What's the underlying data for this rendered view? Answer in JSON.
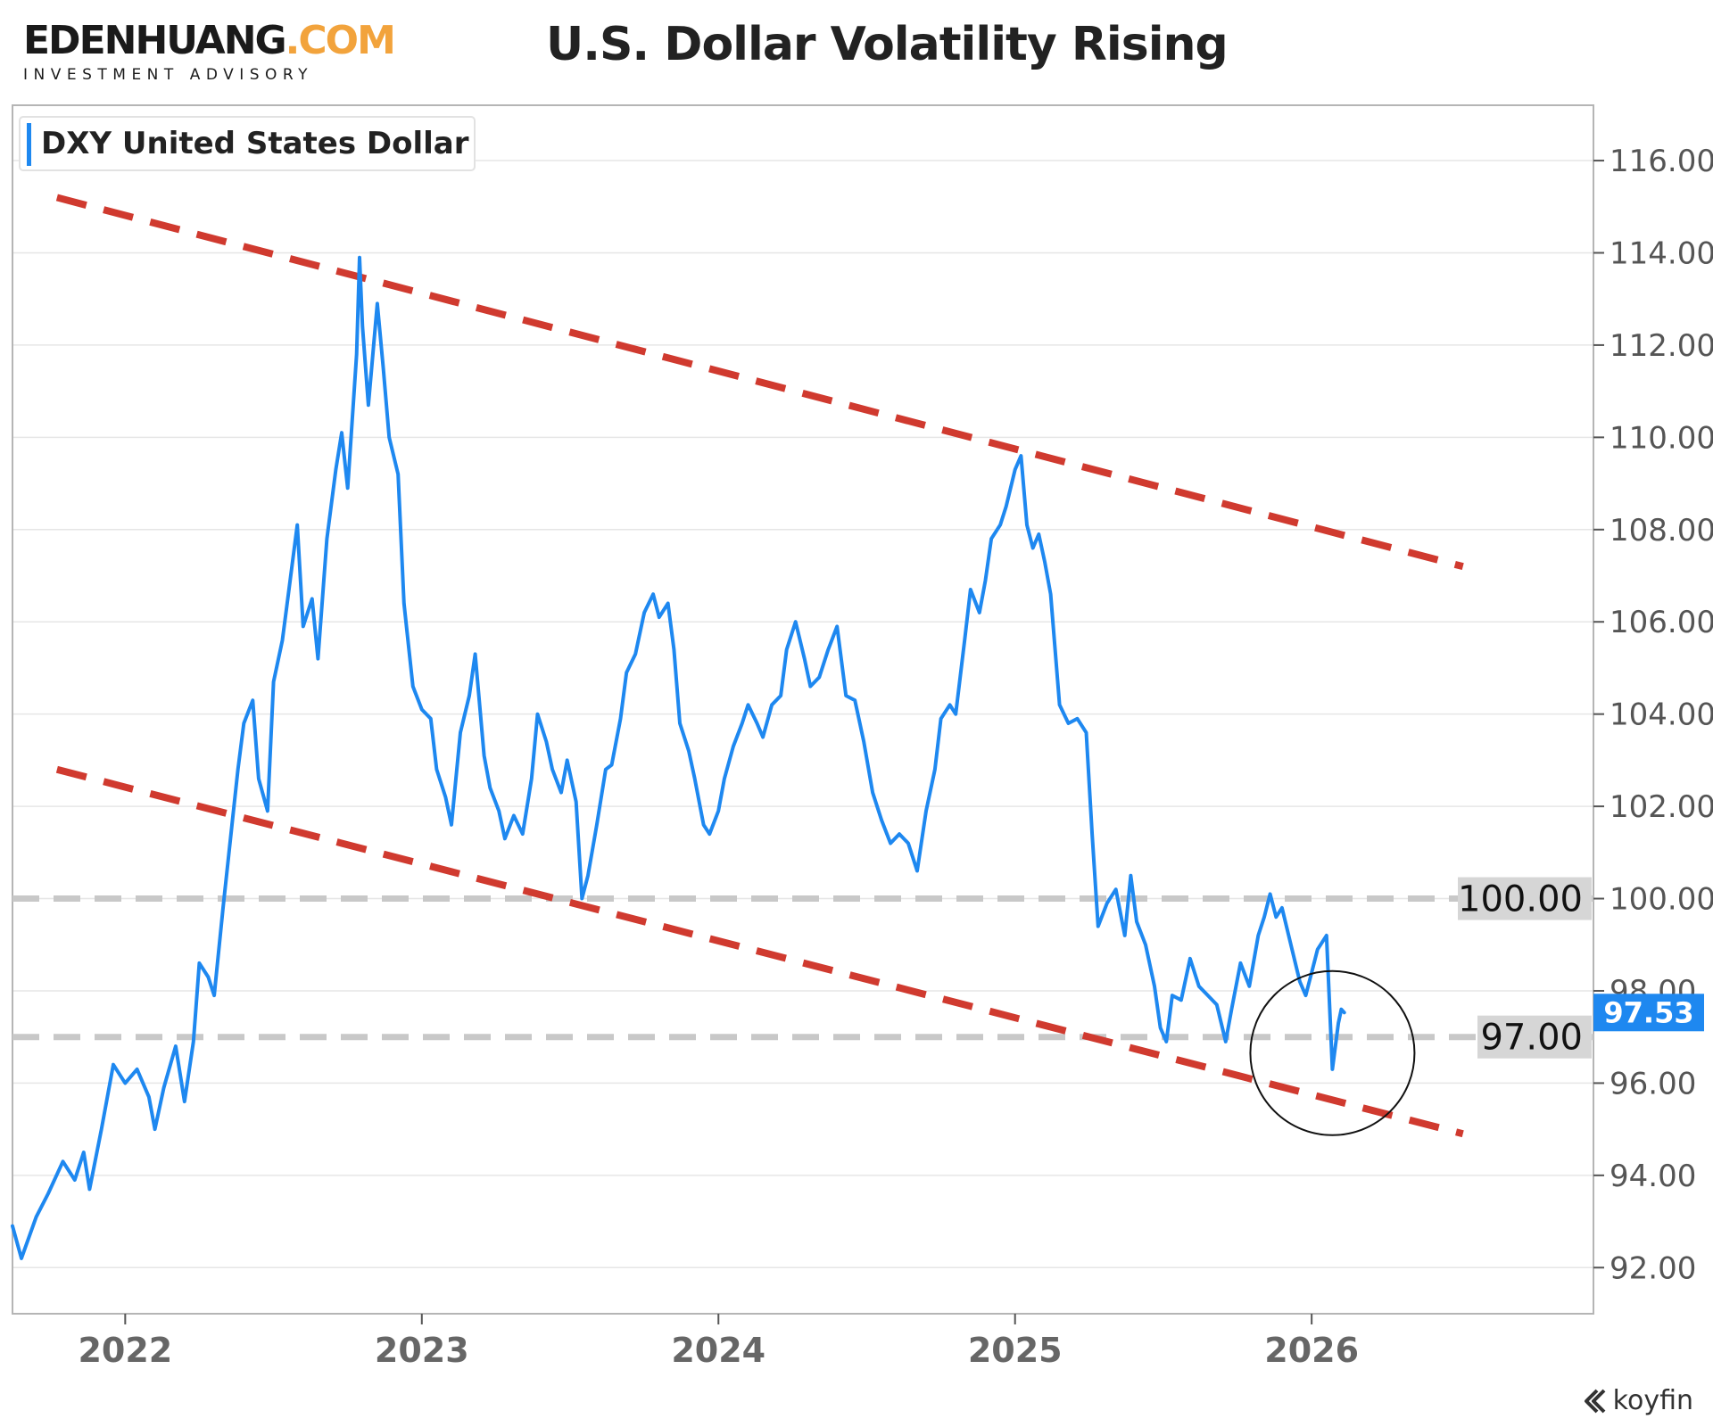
{
  "brand": {
    "name_main": "EDENHUANG",
    "name_accent": ".COM",
    "tagline": "INVESTMENT ADVISORY"
  },
  "watermark": "koyfin",
  "colors": {
    "line": "#1e88f0",
    "trend": "#d03a2f",
    "level": "#c8c8c8",
    "grid": "#e6e6e6"
  },
  "chart_data": {
    "type": "line",
    "title": "U.S. Dollar Volatility Rising",
    "legend": "DXY United States Dollar",
    "legend_position": "top-left",
    "x_range": [
      2021.62,
      2026.95
    ],
    "ylim": [
      91,
      117.2
    ],
    "x_ticks": [
      {
        "value": 2022,
        "label": "2022"
      },
      {
        "value": 2023,
        "label": "2023"
      },
      {
        "value": 2024,
        "label": "2024"
      },
      {
        "value": 2025,
        "label": "2025"
      },
      {
        "value": 2026,
        "label": "2026"
      }
    ],
    "y_ticks": [
      {
        "value": 92,
        "label": "92.00"
      },
      {
        "value": 94,
        "label": "94.00"
      },
      {
        "value": 96,
        "label": "96.00"
      },
      {
        "value": 98,
        "label": "98.00"
      },
      {
        "value": 100,
        "label": "100.00"
      },
      {
        "value": 102,
        "label": "102.00"
      },
      {
        "value": 104,
        "label": "104.00"
      },
      {
        "value": 106,
        "label": "106.00"
      },
      {
        "value": 108,
        "label": "108.00"
      },
      {
        "value": 110,
        "label": "110.00"
      },
      {
        "value": 112,
        "label": "112.00"
      },
      {
        "value": 114,
        "label": "114.00"
      },
      {
        "value": 116,
        "label": "116.00"
      }
    ],
    "series": [
      {
        "name": "DXY United States Dollar",
        "last_value_label": "97.53",
        "points": [
          [
            2021.62,
            92.9
          ],
          [
            2021.65,
            92.2
          ],
          [
            2021.7,
            93.1
          ],
          [
            2021.74,
            93.6
          ],
          [
            2021.79,
            94.3
          ],
          [
            2021.83,
            93.9
          ],
          [
            2021.86,
            94.5
          ],
          [
            2021.88,
            93.7
          ],
          [
            2021.92,
            95.0
          ],
          [
            2021.96,
            96.4
          ],
          [
            2022.0,
            96.0
          ],
          [
            2022.04,
            96.3
          ],
          [
            2022.08,
            95.7
          ],
          [
            2022.1,
            95.0
          ],
          [
            2022.13,
            95.9
          ],
          [
            2022.17,
            96.8
          ],
          [
            2022.2,
            95.6
          ],
          [
            2022.23,
            96.9
          ],
          [
            2022.25,
            98.6
          ],
          [
            2022.28,
            98.3
          ],
          [
            2022.3,
            97.9
          ],
          [
            2022.33,
            99.8
          ],
          [
            2022.36,
            101.6
          ],
          [
            2022.38,
            102.8
          ],
          [
            2022.4,
            103.8
          ],
          [
            2022.43,
            104.3
          ],
          [
            2022.45,
            102.6
          ],
          [
            2022.48,
            101.9
          ],
          [
            2022.5,
            104.7
          ],
          [
            2022.53,
            105.6
          ],
          [
            2022.55,
            106.6
          ],
          [
            2022.58,
            108.1
          ],
          [
            2022.6,
            105.9
          ],
          [
            2022.63,
            106.5
          ],
          [
            2022.65,
            105.2
          ],
          [
            2022.68,
            107.8
          ],
          [
            2022.71,
            109.3
          ],
          [
            2022.73,
            110.1
          ],
          [
            2022.75,
            108.9
          ],
          [
            2022.78,
            111.8
          ],
          [
            2022.79,
            113.9
          ],
          [
            2022.8,
            112.4
          ],
          [
            2022.82,
            110.7
          ],
          [
            2022.85,
            112.9
          ],
          [
            2022.87,
            111.5
          ],
          [
            2022.89,
            110.0
          ],
          [
            2022.92,
            109.2
          ],
          [
            2022.94,
            106.4
          ],
          [
            2022.97,
            104.6
          ],
          [
            2023.0,
            104.1
          ],
          [
            2023.03,
            103.9
          ],
          [
            2023.05,
            102.8
          ],
          [
            2023.08,
            102.2
          ],
          [
            2023.1,
            101.6
          ],
          [
            2023.13,
            103.6
          ],
          [
            2023.16,
            104.4
          ],
          [
            2023.18,
            105.3
          ],
          [
            2023.21,
            103.1
          ],
          [
            2023.23,
            102.4
          ],
          [
            2023.26,
            101.9
          ],
          [
            2023.28,
            101.3
          ],
          [
            2023.31,
            101.8
          ],
          [
            2023.34,
            101.4
          ],
          [
            2023.37,
            102.6
          ],
          [
            2023.39,
            104.0
          ],
          [
            2023.42,
            103.4
          ],
          [
            2023.44,
            102.8
          ],
          [
            2023.47,
            102.3
          ],
          [
            2023.49,
            103.0
          ],
          [
            2023.52,
            102.1
          ],
          [
            2023.54,
            100.0
          ],
          [
            2023.56,
            100.5
          ],
          [
            2023.59,
            101.6
          ],
          [
            2023.62,
            102.8
          ],
          [
            2023.64,
            102.9
          ],
          [
            2023.67,
            103.9
          ],
          [
            2023.69,
            104.9
          ],
          [
            2023.72,
            105.3
          ],
          [
            2023.75,
            106.2
          ],
          [
            2023.78,
            106.6
          ],
          [
            2023.8,
            106.1
          ],
          [
            2023.83,
            106.4
          ],
          [
            2023.85,
            105.4
          ],
          [
            2023.87,
            103.8
          ],
          [
            2023.9,
            103.2
          ],
          [
            2023.92,
            102.6
          ],
          [
            2023.95,
            101.6
          ],
          [
            2023.97,
            101.4
          ],
          [
            2024.0,
            101.9
          ],
          [
            2024.02,
            102.6
          ],
          [
            2024.05,
            103.3
          ],
          [
            2024.08,
            103.8
          ],
          [
            2024.1,
            104.2
          ],
          [
            2024.13,
            103.8
          ],
          [
            2024.15,
            103.5
          ],
          [
            2024.18,
            104.2
          ],
          [
            2024.21,
            104.4
          ],
          [
            2024.23,
            105.4
          ],
          [
            2024.26,
            106.0
          ],
          [
            2024.29,
            105.2
          ],
          [
            2024.31,
            104.6
          ],
          [
            2024.34,
            104.8
          ],
          [
            2024.37,
            105.4
          ],
          [
            2024.4,
            105.9
          ],
          [
            2024.43,
            104.4
          ],
          [
            2024.46,
            104.3
          ],
          [
            2024.49,
            103.4
          ],
          [
            2024.52,
            102.3
          ],
          [
            2024.55,
            101.7
          ],
          [
            2024.58,
            101.2
          ],
          [
            2024.61,
            101.4
          ],
          [
            2024.64,
            101.2
          ],
          [
            2024.67,
            100.6
          ],
          [
            2024.7,
            101.9
          ],
          [
            2024.73,
            102.8
          ],
          [
            2024.75,
            103.9
          ],
          [
            2024.78,
            104.2
          ],
          [
            2024.8,
            104.0
          ],
          [
            2024.83,
            105.6
          ],
          [
            2024.85,
            106.7
          ],
          [
            2024.88,
            106.2
          ],
          [
            2024.9,
            106.9
          ],
          [
            2024.92,
            107.8
          ],
          [
            2024.95,
            108.1
          ],
          [
            2024.97,
            108.5
          ],
          [
            2025.0,
            109.3
          ],
          [
            2025.02,
            109.6
          ],
          [
            2025.04,
            108.1
          ],
          [
            2025.06,
            107.6
          ],
          [
            2025.08,
            107.9
          ],
          [
            2025.1,
            107.3
          ],
          [
            2025.12,
            106.6
          ],
          [
            2025.15,
            104.2
          ],
          [
            2025.18,
            103.8
          ],
          [
            2025.21,
            103.9
          ],
          [
            2025.24,
            103.6
          ],
          [
            2025.26,
            101.4
          ],
          [
            2025.28,
            99.4
          ],
          [
            2025.31,
            99.9
          ],
          [
            2025.34,
            100.2
          ],
          [
            2025.37,
            99.2
          ],
          [
            2025.39,
            100.5
          ],
          [
            2025.41,
            99.5
          ],
          [
            2025.44,
            99.0
          ],
          [
            2025.47,
            98.1
          ],
          [
            2025.49,
            97.2
          ],
          [
            2025.51,
            96.9
          ],
          [
            2025.53,
            97.9
          ],
          [
            2025.56,
            97.8
          ],
          [
            2025.59,
            98.7
          ],
          [
            2025.62,
            98.1
          ],
          [
            2025.65,
            97.9
          ],
          [
            2025.68,
            97.7
          ],
          [
            2025.71,
            96.9
          ],
          [
            2025.73,
            97.6
          ],
          [
            2025.76,
            98.6
          ],
          [
            2025.79,
            98.1
          ],
          [
            2025.82,
            99.2
          ],
          [
            2025.84,
            99.6
          ],
          [
            2025.86,
            100.1
          ],
          [
            2025.88,
            99.6
          ],
          [
            2025.9,
            99.8
          ],
          [
            2025.93,
            99.0
          ],
          [
            2025.96,
            98.2
          ],
          [
            2025.98,
            97.9
          ],
          [
            2026.0,
            98.4
          ],
          [
            2026.02,
            98.9
          ],
          [
            2026.05,
            99.2
          ],
          [
            2026.07,
            96.3
          ],
          [
            2026.09,
            97.3
          ],
          [
            2026.1,
            97.6
          ],
          [
            2026.11,
            97.53
          ]
        ]
      }
    ],
    "trend_lines": [
      {
        "name": "upper-resistance",
        "x1": 2021.77,
        "y1": 115.2,
        "x2": 2026.51,
        "y2": 107.2
      },
      {
        "name": "lower-support",
        "x1": 2021.77,
        "y1": 102.8,
        "x2": 2026.51,
        "y2": 94.9
      }
    ],
    "levels": [
      {
        "value": 100,
        "label": "100.00"
      },
      {
        "value": 97,
        "label": "97.00"
      }
    ],
    "annotation": {
      "type": "circle",
      "x": 2026.07,
      "y": 96.65,
      "note": "highlight recent drop"
    }
  }
}
